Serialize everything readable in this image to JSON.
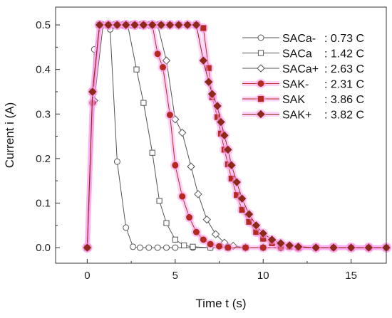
{
  "chart_data": {
    "type": "line",
    "title": "",
    "xlabel": "Time t (s)",
    "ylabel": "Current i (A)",
    "xlim": [
      -1.8,
      17
    ],
    "ylim": [
      -0.035,
      0.54
    ],
    "xticks": [
      "0",
      "5",
      "10",
      "15"
    ],
    "yticks": [
      "0.0",
      "0.1",
      "0.2",
      "0.3",
      "0.4",
      "0.5"
    ],
    "legend_position": "top-right",
    "legend": [
      {
        "name": "SACa-",
        "value": ": 0.73 C"
      },
      {
        "name": "SACa",
        "value": ": 1.42 C"
      },
      {
        "name": "SACa+",
        "value": ": 2.63 C"
      },
      {
        "name": "SAK-",
        "value": ": 2.31 C"
      },
      {
        "name": "SAK",
        "value": ": 3.86 C"
      },
      {
        "name": "SAK+",
        "value": ": 3.82 C"
      }
    ],
    "series": [
      {
        "marker": "circle-open",
        "color": "#555555",
        "x": [
          0,
          0.4,
          0.8,
          1.3,
          1.7,
          2.2,
          2.6,
          3.0,
          3.5,
          4.0,
          4.5,
          5.0,
          6,
          7,
          8,
          9,
          10,
          11,
          12,
          13,
          14,
          15,
          16,
          17
        ],
        "y": [
          0.0,
          0.445,
          0.5,
          0.49,
          0.193,
          0.045,
          0.002,
          0.0,
          0.0,
          0.0,
          0.0,
          0.0,
          0.0,
          0.0,
          0.0,
          0.0,
          0.0,
          0.0,
          0.0,
          0.0,
          0.0,
          0.0,
          0.0,
          0.0
        ]
      },
      {
        "marker": "square-open",
        "color": "#555555",
        "x": [
          0,
          0.3,
          0.7,
          1.2,
          1.7,
          2.3,
          2.8,
          3.2,
          3.7,
          4.1,
          4.5,
          5.0,
          5.5,
          6,
          7,
          8,
          9,
          10,
          11,
          12,
          13,
          14,
          15,
          16,
          17
        ],
        "y": [
          0.0,
          0.35,
          0.5,
          0.5,
          0.5,
          0.5,
          0.4,
          0.325,
          0.213,
          0.105,
          0.055,
          0.018,
          0.005,
          0.002,
          0.0,
          0.0,
          0.0,
          0.0,
          0.0,
          0.0,
          0.0,
          0.0,
          0.0,
          0.0,
          0.0
        ]
      },
      {
        "marker": "diamond-open",
        "color": "#555555",
        "x": [
          0,
          0.4,
          0.9,
          1.5,
          2.0,
          2.5,
          3.0,
          3.5,
          4.0,
          4.5,
          5.0,
          5.4,
          5.9,
          6.3,
          6.8,
          7.3,
          7.8,
          8.3,
          9,
          10,
          11,
          12,
          13,
          14,
          15,
          16,
          17
        ],
        "y": [
          0.0,
          0.33,
          0.5,
          0.5,
          0.5,
          0.5,
          0.5,
          0.5,
          0.5,
          0.42,
          0.288,
          0.258,
          0.182,
          0.12,
          0.063,
          0.03,
          0.011,
          0.004,
          0.0,
          0.0,
          0.0,
          0.0,
          0.0,
          0.0,
          0.0,
          0.0,
          0.0
        ]
      },
      {
        "marker": "circle-filled",
        "color": "#b52a20",
        "x": [
          0,
          0.3,
          0.7,
          1.2,
          1.7,
          2.2,
          2.7,
          3.2,
          3.7,
          4.0,
          4.3,
          4.7,
          5.0,
          5.4,
          5.8,
          6.2,
          6.6,
          7.0,
          7.5,
          8,
          9,
          10,
          11,
          12,
          13,
          14,
          15,
          16,
          17
        ],
        "y": [
          0.0,
          0.325,
          0.5,
          0.5,
          0.5,
          0.5,
          0.5,
          0.5,
          0.5,
          0.435,
          0.405,
          0.298,
          0.185,
          0.115,
          0.068,
          0.035,
          0.018,
          0.008,
          0.003,
          0.0,
          0.0,
          0.0,
          0.0,
          0.0,
          0.0,
          0.0,
          0.0,
          0.0,
          0.0
        ]
      },
      {
        "marker": "square-filled",
        "color": "#b52a20",
        "x": [
          0,
          0.3,
          0.7,
          1.2,
          1.7,
          2.2,
          2.7,
          3.2,
          3.7,
          4.2,
          4.7,
          5.2,
          5.7,
          6.2,
          6.6,
          6.9,
          7.1,
          7.4,
          7.6,
          7.8,
          8.0,
          8.2,
          8.5,
          8.8,
          9.2,
          9.6,
          10.0,
          10.5,
          11.0,
          11.5,
          12,
          13,
          14,
          15,
          16,
          17
        ],
        "y": [
          0.0,
          0.35,
          0.5,
          0.5,
          0.5,
          0.5,
          0.5,
          0.5,
          0.5,
          0.5,
          0.5,
          0.5,
          0.5,
          0.5,
          0.493,
          0.403,
          0.338,
          0.293,
          0.256,
          0.22,
          0.187,
          0.155,
          0.118,
          0.085,
          0.058,
          0.035,
          0.02,
          0.01,
          0.005,
          0.002,
          0.0,
          0.0,
          0.0,
          0.0,
          0.0,
          0.0
        ]
      },
      {
        "marker": "diamond-filled",
        "color": "#8b2a18",
        "x": [
          0,
          0.3,
          0.7,
          1.2,
          1.7,
          2.2,
          2.7,
          3.2,
          3.7,
          4.2,
          4.7,
          5.2,
          5.7,
          6.2,
          6.6,
          6.9,
          7.1,
          7.4,
          7.6,
          7.8,
          8.0,
          8.2,
          8.5,
          8.8,
          9.2,
          9.6,
          10.0,
          10.5,
          11.0,
          11.5,
          12,
          13,
          14,
          15,
          16,
          17
        ],
        "y": [
          0.0,
          0.35,
          0.5,
          0.5,
          0.5,
          0.5,
          0.5,
          0.5,
          0.5,
          0.5,
          0.5,
          0.5,
          0.5,
          0.5,
          0.42,
          0.372,
          0.345,
          0.318,
          0.282,
          0.252,
          0.22,
          0.185,
          0.147,
          0.11,
          0.075,
          0.05,
          0.032,
          0.018,
          0.01,
          0.005,
          0.002,
          0.0,
          0.0,
          0.0,
          0.0,
          0.0
        ]
      }
    ]
  }
}
